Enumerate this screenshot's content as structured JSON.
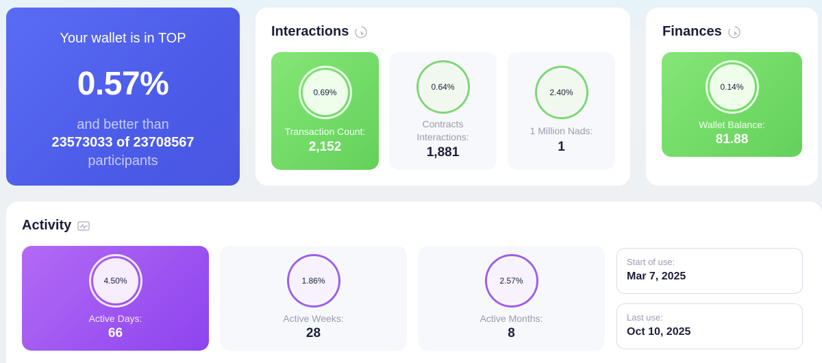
{
  "rank": {
    "line1": "Your wallet is in TOP",
    "percent": "0.57%",
    "line3": "and better than",
    "line4": "23573033 of 23708567",
    "line5": "participants"
  },
  "interactions": {
    "title": "Interactions",
    "icon": "cursor-click-icon",
    "tiles": [
      {
        "percent": "0.69%",
        "label": "Transaction Count:",
        "value": "2,152"
      },
      {
        "percent": "0.64%",
        "label": "Contracts Interactions:",
        "value": "1,881"
      },
      {
        "percent": "2.40%",
        "label": "1 Million Nads:",
        "value": "1"
      }
    ]
  },
  "finances": {
    "title": "Finances",
    "icon": "cursor-click-icon",
    "tile": {
      "percent": "0.14%",
      "label": "Wallet Balance:",
      "value": "81.88"
    }
  },
  "activity": {
    "title": "Activity",
    "icon": "activity-chart-icon",
    "tiles": [
      {
        "percent": "4.50%",
        "label": "Active Days:",
        "value": "66"
      },
      {
        "percent": "1.86%",
        "label": "Active Weeks:",
        "value": "28"
      },
      {
        "percent": "2.57%",
        "label": "Active Months:",
        "value": "8"
      }
    ],
    "start": {
      "label": "Start of use:",
      "value": "Mar 7, 2025"
    },
    "last": {
      "label": "Last use:",
      "value": "Oct 10, 2025"
    }
  },
  "colors": {
    "blue": "#4c5ce8",
    "green": "#6ad85f",
    "purple": "#9b51f0"
  }
}
